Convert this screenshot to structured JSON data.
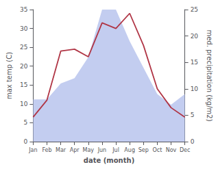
{
  "chart_data": {
    "type": "line",
    "categories": [
      "Jan",
      "Feb",
      "Mar",
      "Apr",
      "May",
      "Jun",
      "Jul",
      "Aug",
      "Sep",
      "Oct",
      "Nov",
      "Dec"
    ],
    "series": [
      {
        "type": "area",
        "color": "#b8c4ed",
        "axis": "y2",
        "values": [
          8,
          8,
          11,
          12,
          16,
          25,
          25,
          19,
          14,
          9,
          7,
          9
        ]
      },
      {
        "type": "line",
        "color": "#b03545",
        "values": [
          6.5,
          11.0,
          24.0,
          24.5,
          22.5,
          31.5,
          30.0,
          34.0,
          25.5,
          14.0,
          9.0,
          6.5
        ]
      }
    ],
    "xlabel": "date (month)",
    "ylabel": "max temp (C)",
    "y2label": "med. precipitation (kg/m2)",
    "ylim": [
      0,
      35
    ],
    "yticks": [
      0,
      5,
      10,
      15,
      20,
      25,
      30,
      35
    ],
    "y2lim": [
      0,
      25
    ],
    "y2ticks": [
      0,
      5,
      10,
      15,
      20,
      25
    ],
    "grid": false
  }
}
